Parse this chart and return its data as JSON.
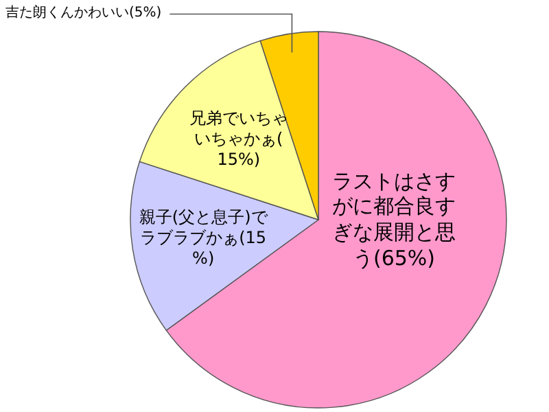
{
  "chart_data": {
    "type": "pie",
    "categories": [
      "ラストはさすがに都合良すぎな展開と思う(65%)",
      "親子(父と息子)でラブラブかぁ(15%)",
      "兄弟でいちゃいちゃかぁ(15%)",
      "吉た朗くんかわいい(5%)"
    ],
    "values": [
      65,
      15,
      15,
      5
    ],
    "colors": [
      "#ff99cc",
      "#ccccff",
      "#ffff99",
      "#ffcc00"
    ]
  }
}
